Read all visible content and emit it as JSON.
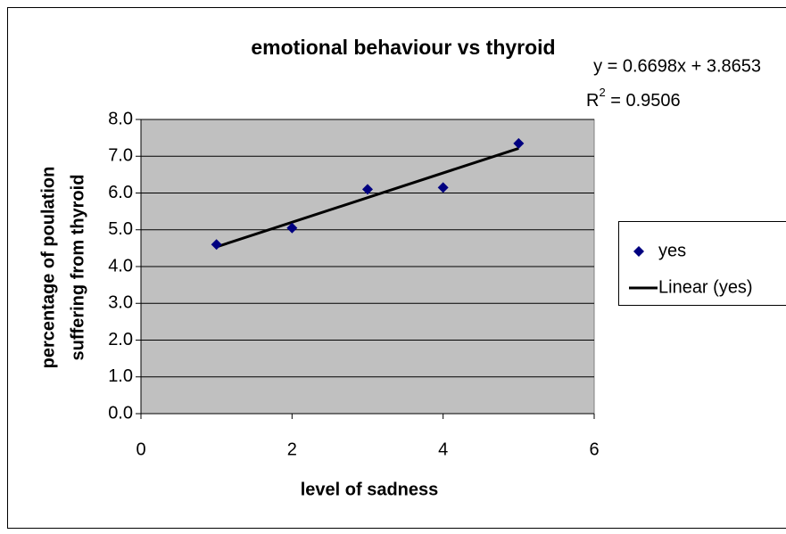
{
  "chart_data": {
    "type": "scatter",
    "title": "emotional behaviour vs thyroid",
    "xlabel": "level of sadness",
    "ylabel": [
      "percentage of poulation",
      "suffering from thyroid"
    ],
    "series": [
      {
        "name": "yes",
        "color": "#000080",
        "marker": "diamond",
        "x": [
          1,
          2,
          3,
          4,
          5
        ],
        "values": [
          4.6,
          5.05,
          6.1,
          6.15,
          7.35
        ]
      }
    ],
    "trendline": {
      "name": "Linear (yes)",
      "color": "#000000",
      "slope": 0.6698,
      "intercept": 3.8653,
      "equation": "y = 0.6698x + 3.8653",
      "r_squared": {
        "base": "R",
        "sup": "2",
        "rest": " = 0.9506"
      }
    },
    "xlim": [
      0,
      6
    ],
    "xticks": [
      0,
      2,
      4,
      6
    ],
    "ylim": [
      0,
      8
    ],
    "yticks": [
      {
        "value": 0,
        "label": "0.0"
      },
      {
        "value": 1,
        "label": "1.0"
      },
      {
        "value": 2,
        "label": "2.0"
      },
      {
        "value": 3,
        "label": "3.0"
      },
      {
        "value": 4,
        "label": "4.0"
      },
      {
        "value": 5,
        "label": "5.0"
      },
      {
        "value": 6,
        "label": "6.0"
      },
      {
        "value": 7,
        "label": "7.0"
      },
      {
        "value": 8,
        "label": "8.0"
      }
    ],
    "grid": true,
    "plot_background": "#c0c0c0",
    "legend": "right"
  }
}
